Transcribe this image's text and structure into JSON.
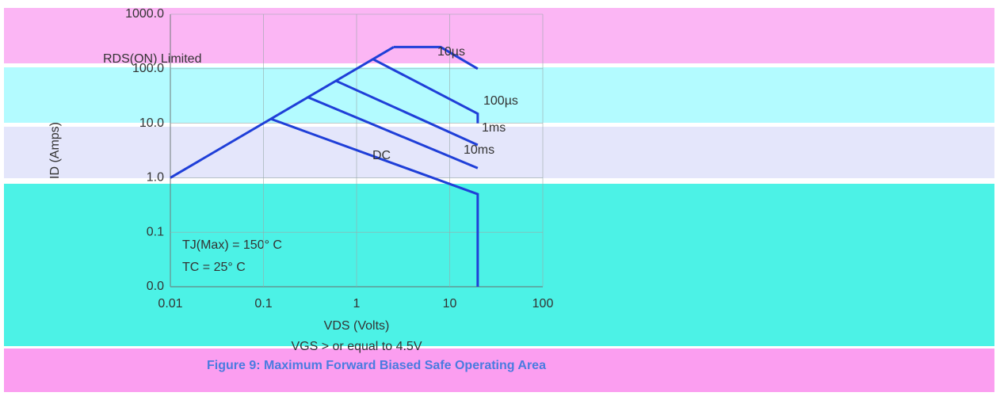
{
  "chart_data": {
    "type": "line",
    "title": "Figure 9: Maximum Forward Biased Safe Operating Area",
    "xlabel": "VDS (Volts)",
    "ylabel": "ID (Amps)",
    "annotations": [
      "TJ(Max) = 150° C",
      "TC = 25° C",
      "VGS > or equal to 4.5V"
    ],
    "xscale": "log",
    "yscale": "log",
    "xlim": [
      0.01,
      100
    ],
    "ylim": [
      0.01,
      1000
    ],
    "xticks": [
      0.01,
      0.1,
      1,
      10,
      100
    ],
    "yticks": [
      {
        "value": 0.01,
        "label": "0.0"
      },
      0.1,
      {
        "value": 1,
        "label": "1.0"
      },
      {
        "value": 10,
        "label": "10.0"
      },
      {
        "value": 100,
        "label": "100.0"
      },
      {
        "value": 1000,
        "label": "1000.0"
      }
    ],
    "series": [
      {
        "name": "RDS(ON) Limited",
        "color": "#1f3fd8",
        "x": [
          0.01,
          2.5
        ],
        "values": [
          1,
          250
        ]
      },
      {
        "name": "10µs",
        "color": "#1f3fd8",
        "x": [
          2.5,
          8,
          20
        ],
        "values": [
          250,
          250,
          100
        ]
      },
      {
        "name": "100µs",
        "color": "#1f3fd8",
        "x": [
          1.5,
          20,
          20
        ],
        "values": [
          150,
          15,
          10
        ]
      },
      {
        "name": "1ms",
        "color": "#1f3fd8",
        "x": [
          0.6,
          20
        ],
        "values": [
          60,
          4
        ]
      },
      {
        "name": "10ms",
        "color": "#1f3fd8",
        "x": [
          0.3,
          20
        ],
        "values": [
          30,
          1.5
        ]
      },
      {
        "name": "DC",
        "color": "#1f3fd8",
        "x": [
          0.12,
          20,
          20
        ],
        "values": [
          12,
          0.5,
          0.01
        ]
      }
    ]
  }
}
